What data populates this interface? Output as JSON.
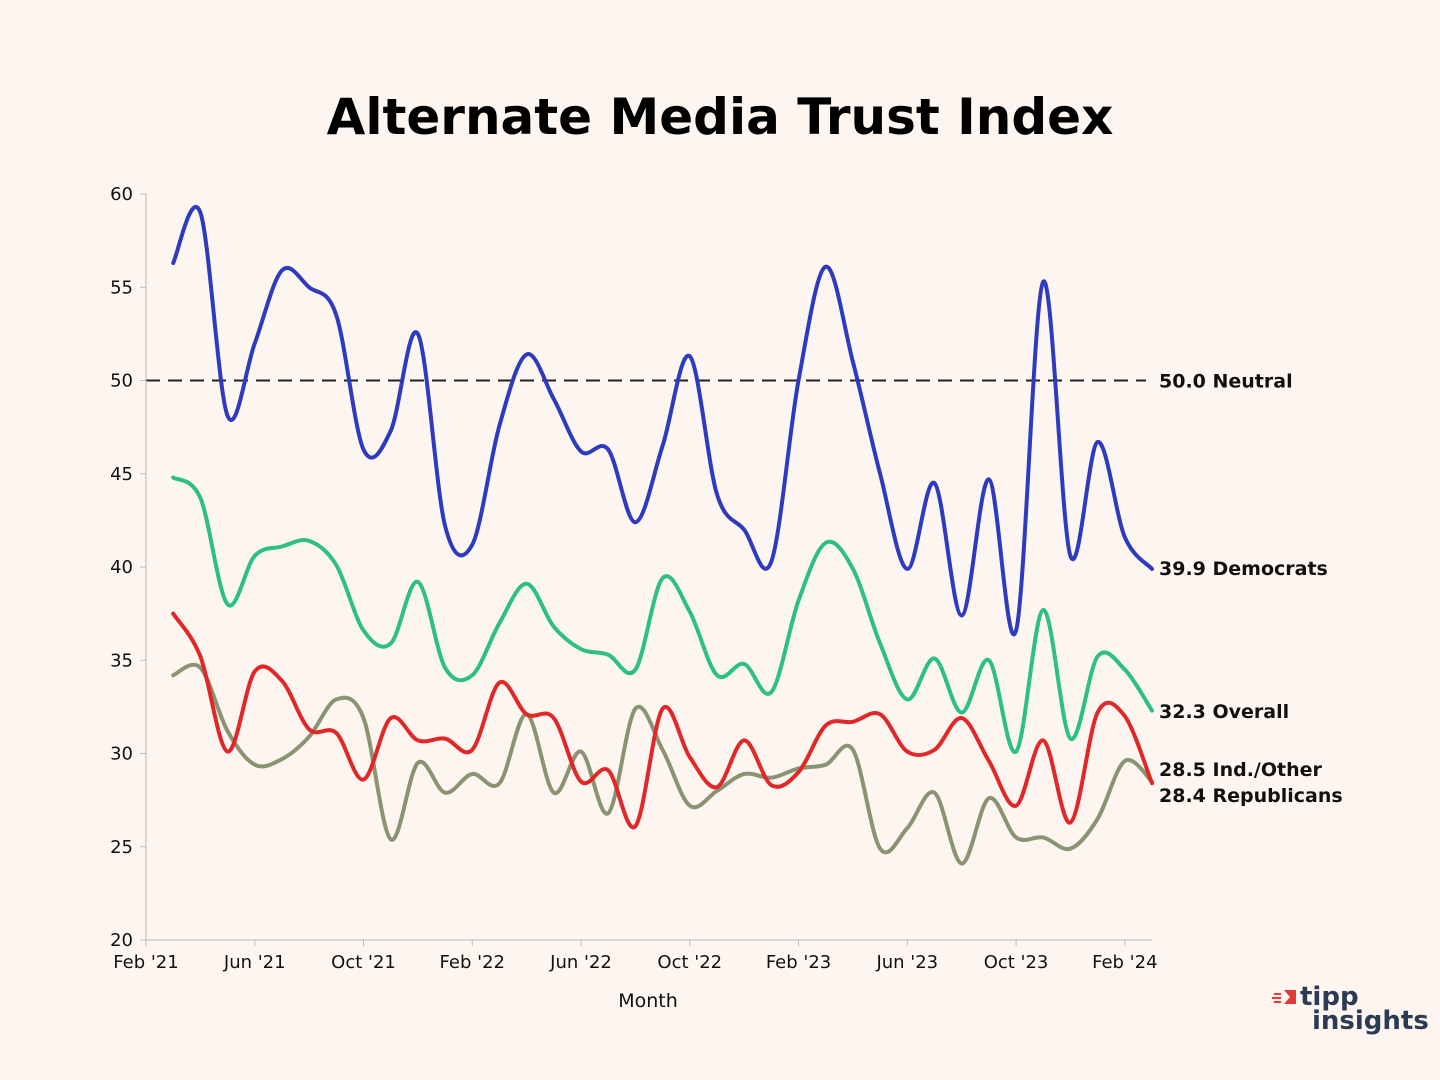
{
  "chart_data": {
    "type": "line",
    "title": "Alternate Media Trust Index",
    "xlabel": "Month",
    "ylabel": "",
    "ylim": [
      20,
      60
    ],
    "yticks": [
      20,
      25,
      30,
      35,
      40,
      45,
      50,
      55,
      60
    ],
    "xlim": [
      0,
      37
    ],
    "xticks": [
      {
        "i": 0,
        "label": "Feb '21"
      },
      {
        "i": 4,
        "label": "Jun '21"
      },
      {
        "i": 8,
        "label": "Oct '21"
      },
      {
        "i": 12,
        "label": "Feb '22"
      },
      {
        "i": 16,
        "label": "Jun '22"
      },
      {
        "i": 20,
        "label": "Oct '22"
      },
      {
        "i": 24,
        "label": "Feb '23"
      },
      {
        "i": 28,
        "label": "Jun '23"
      },
      {
        "i": 32,
        "label": "Oct '23"
      },
      {
        "i": 36,
        "label": "Feb '24"
      }
    ],
    "reference_line": {
      "value": 50.0,
      "label": "50.0 Neutral",
      "color": "#222222"
    },
    "series": [
      {
        "name": "Democrats",
        "label": "39.9 Democrats",
        "color": "#2e3bbf",
        "x": [
          1,
          2,
          3,
          4,
          5,
          6,
          7,
          8,
          9,
          10,
          11,
          12,
          13,
          14,
          15,
          16,
          17,
          18,
          19,
          20,
          21,
          22,
          23,
          24,
          25,
          26,
          27,
          28,
          29,
          30,
          31,
          32,
          33,
          34,
          35,
          36,
          37
        ],
        "values": [
          56.3,
          59.0,
          48.1,
          52.0,
          55.9,
          55.0,
          53.5,
          46.3,
          47.3,
          52.5,
          42.2,
          41.2,
          47.6,
          51.4,
          49.0,
          46.2,
          46.3,
          42.4,
          46.5,
          51.3,
          43.9,
          42.0,
          40.3,
          50.0,
          56.1,
          51.0,
          45.0,
          39.9,
          44.5,
          37.4,
          44.7,
          36.6,
          55.3,
          40.6,
          46.7,
          41.6,
          39.9
        ]
      },
      {
        "name": "Overall",
        "label": "32.3 Overall",
        "color": "#2dbf84",
        "x": [
          1,
          2,
          3,
          4,
          5,
          6,
          7,
          8,
          9,
          10,
          11,
          12,
          13,
          14,
          15,
          16,
          17,
          18,
          19,
          20,
          21,
          22,
          23,
          24,
          25,
          26,
          27,
          28,
          29,
          30,
          31,
          32,
          33,
          34,
          35,
          36,
          37
        ],
        "values": [
          44.8,
          43.7,
          38.0,
          40.6,
          41.1,
          41.4,
          40.1,
          36.6,
          35.9,
          39.2,
          34.6,
          34.2,
          37.0,
          39.1,
          36.8,
          35.6,
          35.3,
          34.5,
          39.4,
          37.6,
          34.2,
          34.8,
          33.3,
          38.2,
          41.3,
          39.9,
          35.9,
          32.9,
          35.1,
          32.2,
          35.0,
          30.1,
          37.7,
          30.8,
          35.2,
          34.5,
          32.3
        ]
      },
      {
        "name": "Republicans",
        "label": "28.4 Republicans",
        "color": "#e02828",
        "x": [
          1,
          2,
          3,
          4,
          5,
          6,
          7,
          8,
          9,
          10,
          11,
          12,
          13,
          14,
          15,
          16,
          17,
          18,
          19,
          20,
          21,
          22,
          23,
          24,
          25,
          26,
          27,
          28,
          29,
          30,
          31,
          32,
          33,
          34,
          35,
          36,
          37
        ],
        "values": [
          37.5,
          35.2,
          30.1,
          34.4,
          33.9,
          31.3,
          31.1,
          28.6,
          31.9,
          30.7,
          30.8,
          30.2,
          33.8,
          32.1,
          31.9,
          28.5,
          29.1,
          26.1,
          32.4,
          29.8,
          28.2,
          30.7,
          28.3,
          29.0,
          31.5,
          31.7,
          32.1,
          30.1,
          30.2,
          31.9,
          29.6,
          27.2,
          30.7,
          26.3,
          32.2,
          32.0,
          28.4
        ]
      },
      {
        "name": "Ind./Other",
        "label": "28.5 Ind./Other",
        "color": "#8a9472",
        "x": [
          1,
          2,
          3,
          4,
          5,
          6,
          7,
          8,
          9,
          10,
          11,
          12,
          13,
          14,
          15,
          16,
          17,
          18,
          19,
          20,
          21,
          22,
          23,
          24,
          25,
          26,
          27,
          28,
          29,
          30,
          31,
          32,
          33,
          34,
          35,
          36,
          37
        ],
        "values": [
          34.2,
          34.6,
          31.2,
          29.4,
          29.7,
          30.9,
          32.9,
          31.9,
          25.4,
          29.5,
          27.9,
          28.9,
          28.4,
          32.1,
          27.9,
          30.1,
          26.8,
          32.4,
          30.2,
          27.2,
          28.0,
          28.9,
          28.7,
          29.2,
          29.4,
          30.2,
          24.9,
          26.0,
          27.9,
          24.1,
          27.6,
          25.5,
          25.5,
          24.9,
          26.5,
          29.6,
          28.5
        ]
      }
    ]
  },
  "brand": {
    "line1": "tipp",
    "line2": "insights",
    "text_color": "#2d3a55",
    "mark_color": "#e03a3a"
  }
}
